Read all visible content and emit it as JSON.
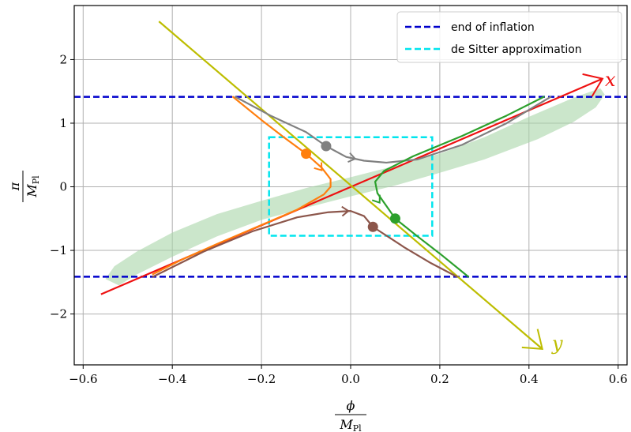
{
  "chart_data": {
    "type": "line",
    "xlabel": "φ / M_Pl",
    "ylabel": "π / M_Pl",
    "xlim": [
      -0.62,
      0.62
    ],
    "ylim": [
      -2.8,
      2.85
    ],
    "xticks": [
      -0.6,
      -0.4,
      -0.2,
      0.0,
      0.2,
      0.4,
      0.6
    ],
    "yticks": [
      -2,
      -1,
      0,
      1,
      2
    ],
    "xtick_labels": [
      "−0.6",
      "−0.4",
      "−0.2",
      "0.0",
      "0.2",
      "0.4",
      "0.6"
    ],
    "ytick_labels": [
      "−2",
      "−1",
      "0",
      "1",
      "2"
    ],
    "grid": true,
    "legend_position": "top-right",
    "legend": [
      {
        "label": "end of inflation",
        "color": "#0000cc",
        "style": "dashed"
      },
      {
        "label": "de Sitter approximation",
        "color": "#00e5ee",
        "style": "dashed"
      }
    ],
    "end_of_inflation_y": [
      1.414,
      -1.414
    ],
    "de_sitter_box": {
      "x": [
        -0.183,
        0.183
      ],
      "y": [
        -0.77,
        0.78
      ]
    },
    "region": {
      "color": "#a9d6a9",
      "points": [
        [
          -0.55,
          -1.45
        ],
        [
          -0.53,
          -1.25
        ],
        [
          -0.48,
          -1.02
        ],
        [
          -0.4,
          -0.72
        ],
        [
          -0.3,
          -0.43
        ],
        [
          -0.2,
          -0.22
        ],
        [
          -0.1,
          -0.02
        ],
        [
          0.0,
          0.15
        ],
        [
          0.1,
          0.33
        ],
        [
          0.2,
          0.52
        ],
        [
          0.3,
          0.78
        ],
        [
          0.4,
          1.1
        ],
        [
          0.5,
          1.4
        ],
        [
          0.56,
          1.55
        ],
        [
          0.57,
          1.45
        ],
        [
          0.55,
          1.25
        ],
        [
          0.5,
          1.02
        ],
        [
          0.42,
          0.75
        ],
        [
          0.3,
          0.43
        ],
        [
          0.2,
          0.22
        ],
        [
          0.1,
          0.02
        ],
        [
          0.0,
          -0.15
        ],
        [
          -0.1,
          -0.33
        ],
        [
          -0.2,
          -0.52
        ],
        [
          -0.3,
          -0.78
        ],
        [
          -0.4,
          -1.1
        ],
        [
          -0.48,
          -1.38
        ],
        [
          -0.52,
          -1.55
        ]
      ]
    },
    "annotations": [
      {
        "text": "x",
        "color": "#ee1111"
      },
      {
        "text": "y",
        "color": "#bdbd00"
      }
    ],
    "series": [
      {
        "color": "#ee1111",
        "points": [
          [
            -0.56,
            -1.69
          ],
          [
            0.565,
            1.7
          ]
        ],
        "arrow_end": true
      },
      {
        "color": "#bdbd00",
        "points": [
          [
            -0.43,
            2.6
          ],
          [
            0.43,
            -2.55
          ]
        ],
        "arrow_end": true
      },
      {
        "color": "#ff7f0e",
        "points": [
          [
            -0.265,
            1.42
          ],
          [
            -0.2,
            1.05
          ],
          [
            -0.15,
            0.78
          ],
          [
            -0.1,
            0.52
          ],
          [
            -0.065,
            0.3
          ],
          [
            -0.045,
            0.12
          ],
          [
            -0.045,
            0.0
          ],
          [
            -0.06,
            -0.12
          ],
          [
            -0.12,
            -0.36
          ],
          [
            -0.2,
            -0.6
          ],
          [
            -0.3,
            -0.9
          ],
          [
            -0.38,
            -1.15
          ],
          [
            -0.445,
            -1.38
          ]
        ],
        "marker": [
          -0.1,
          0.52
        ],
        "arrow_at": [
          -0.065,
          0.26
        ]
      },
      {
        "color": "#808080",
        "points": [
          [
            -0.26,
            1.42
          ],
          [
            -0.18,
            1.12
          ],
          [
            -0.1,
            0.86
          ],
          [
            -0.055,
            0.64
          ],
          [
            -0.01,
            0.47
          ],
          [
            0.03,
            0.41
          ],
          [
            0.08,
            0.38
          ],
          [
            0.15,
            0.43
          ],
          [
            0.25,
            0.66
          ],
          [
            0.35,
            1.0
          ],
          [
            0.45,
            1.42
          ]
        ],
        "marker": [
          -0.055,
          0.64
        ],
        "arrow_at": [
          0.01,
          0.44
        ]
      },
      {
        "color": "#2ca02c",
        "points": [
          [
            0.435,
            1.42
          ],
          [
            0.35,
            1.12
          ],
          [
            0.25,
            0.8
          ],
          [
            0.14,
            0.48
          ],
          [
            0.075,
            0.25
          ],
          [
            0.055,
            0.08
          ],
          [
            0.06,
            -0.1
          ],
          [
            0.08,
            -0.3
          ],
          [
            0.1,
            -0.5
          ],
          [
            0.15,
            -0.78
          ],
          [
            0.2,
            -1.05
          ],
          [
            0.265,
            -1.42
          ]
        ],
        "marker": [
          0.1,
          -0.5
        ],
        "arrow_at": [
          0.065,
          -0.25
        ]
      },
      {
        "color": "#8c564b",
        "points": [
          [
            -0.445,
            -1.42
          ],
          [
            -0.33,
            -1.02
          ],
          [
            -0.22,
            -0.7
          ],
          [
            -0.12,
            -0.48
          ],
          [
            -0.05,
            -0.4
          ],
          [
            0.0,
            -0.38
          ],
          [
            0.03,
            -0.46
          ],
          [
            0.05,
            -0.63
          ],
          [
            0.12,
            -0.95
          ],
          [
            0.18,
            -1.2
          ],
          [
            0.24,
            -1.42
          ]
        ],
        "marker": [
          0.05,
          -0.63
        ],
        "arrow_at": [
          -0.005,
          -0.38
        ]
      }
    ]
  }
}
